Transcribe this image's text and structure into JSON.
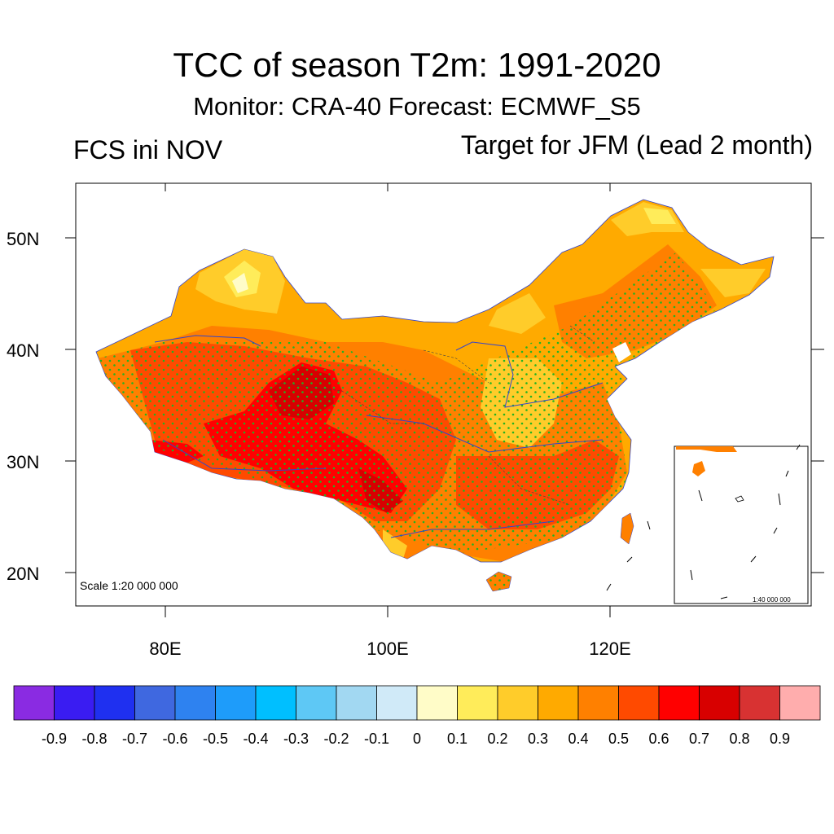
{
  "title": "TCC of season T2m: 1991-2020",
  "subtitle": "Monitor: CRA-40   Forecast: ECMWF_S5",
  "left_subtitle": "FCS ini NOV",
  "right_subtitle": "Target for JFM (Lead 2 month)",
  "lat_labels": [
    "50N",
    "40N",
    "30N",
    "20N"
  ],
  "lon_labels": [
    "80E",
    "100E",
    "120E"
  ],
  "scale_main": "Scale 1:20 000 000",
  "scale_inset": "1:40 000 000",
  "colorbar": {
    "colors": [
      "#8a2be2",
      "#3a1cf2",
      "#1f30f0",
      "#3f68e0",
      "#2e82f0",
      "#1e9cfa",
      "#00bfff",
      "#5ec8f5",
      "#a2d8f2",
      "#d0eaf8",
      "#fffcc8",
      "#ffec5a",
      "#ffcc2a",
      "#ffaa00",
      "#ff8000",
      "#ff4a00",
      "#ff0000",
      "#d80000",
      "#d83232",
      "#ffadad"
    ],
    "labels": [
      "-0.9",
      "-0.8",
      "-0.7",
      "-0.6",
      "-0.5",
      "-0.4",
      "-0.3",
      "-0.2",
      "-0.1",
      "0",
      "0.1",
      "0.2",
      "0.3",
      "0.4",
      "0.5",
      "0.6",
      "0.7",
      "0.8",
      "0.9"
    ]
  },
  "colors": {
    "tcc_0_1": "#fffcc8",
    "tcc_0_2": "#ffec5a",
    "tcc_0_3": "#ffcc2a",
    "tcc_0_4": "#ffaa00",
    "tcc_0_5": "#ff8000",
    "tcc_0_6": "#ff4a00",
    "tcc_0_7": "#ff0000",
    "tcc_0_8": "#d80000",
    "stipple": "#22b222",
    "rivers": "#3344cc"
  }
}
